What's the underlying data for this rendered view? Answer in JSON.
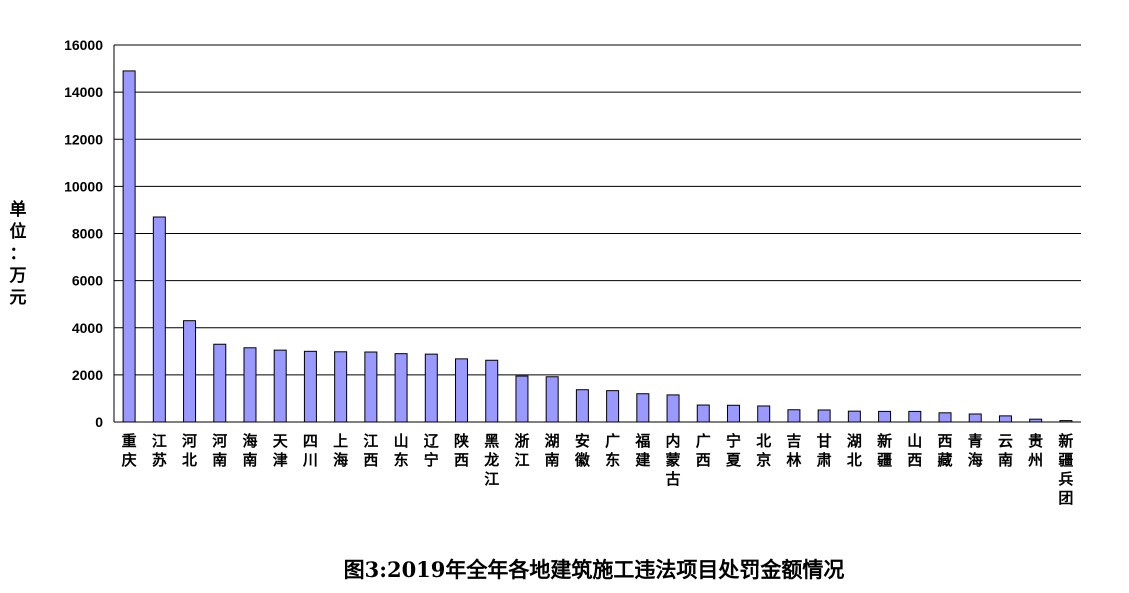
{
  "chart_data": {
    "type": "bar",
    "title": "图3:2019年全年各地建筑施工违法项目处罚金额情况",
    "ylabel": "单位：万元",
    "xlabel": "",
    "ylim": [
      0,
      16000
    ],
    "yticks": [
      0,
      2000,
      4000,
      6000,
      8000,
      10000,
      12000,
      14000,
      16000
    ],
    "grid": true,
    "legend": "none",
    "bar_color": "#9999ff",
    "categories": [
      "重庆",
      "江苏",
      "河北",
      "河南",
      "海南",
      "天津",
      "四川",
      "上海",
      "江西",
      "山东",
      "辽宁",
      "陕西",
      "黑龙江",
      "浙江",
      "湖南",
      "安徽",
      "广东",
      "福建",
      "内蒙古",
      "广西",
      "宁夏",
      "北京",
      "吉林",
      "甘肃",
      "湖北",
      "新疆",
      "山西",
      "西藏",
      "青海",
      "云南",
      "贵州",
      "新疆兵团"
    ],
    "values": [
      14900,
      8700,
      4300,
      3300,
      3150,
      3050,
      3000,
      2980,
      2970,
      2900,
      2880,
      2680,
      2620,
      1950,
      1920,
      1370,
      1330,
      1200,
      1150,
      720,
      710,
      680,
      520,
      510,
      460,
      450,
      450,
      390,
      340,
      260,
      120,
      60
    ]
  }
}
